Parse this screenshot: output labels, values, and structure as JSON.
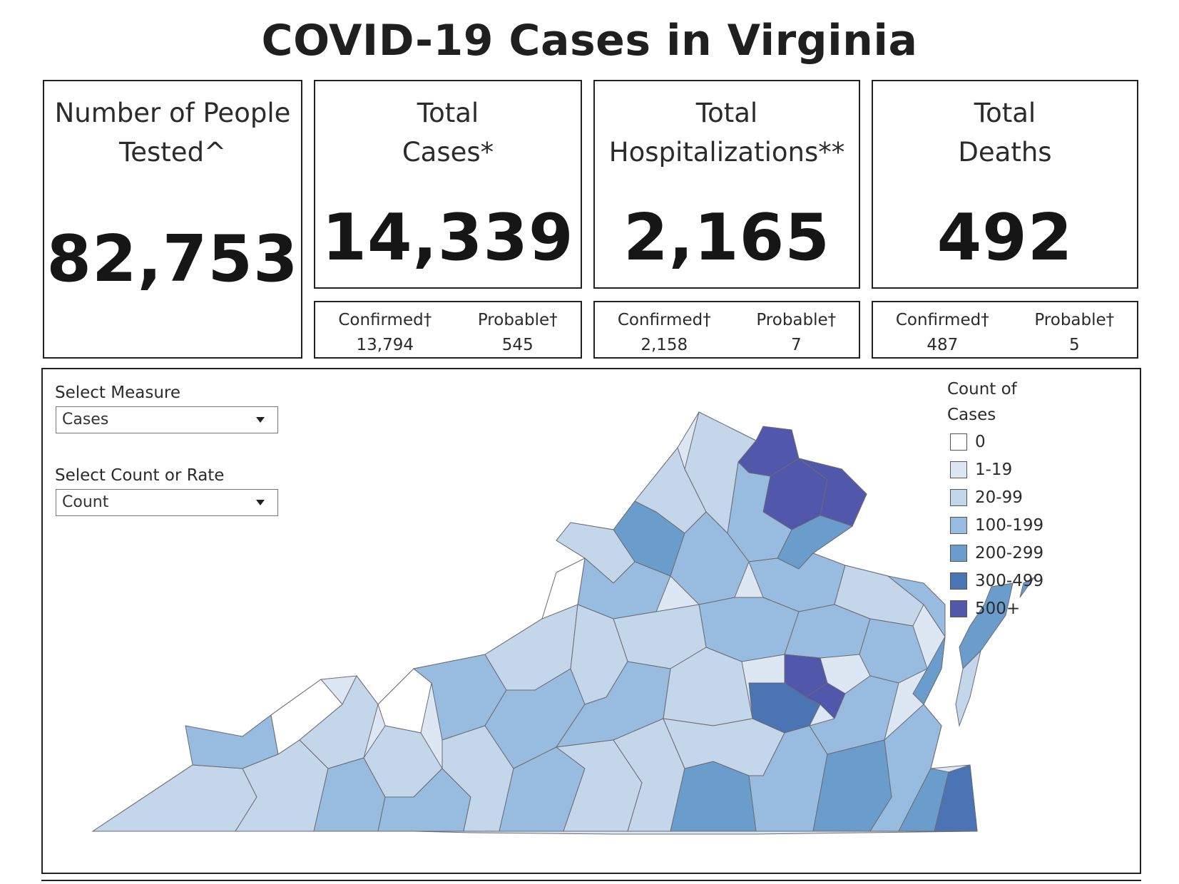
{
  "title": "COVID-19 Cases in Virginia",
  "kpis": {
    "tested": {
      "label_line1": "Number of People",
      "label_line2": "Tested^",
      "value": "82,753"
    },
    "cases": {
      "label_line1": "Total",
      "label_line2": "Cases*",
      "value": "14,339",
      "confirmed_label": "Confirmed†",
      "confirmed_value": "13,794",
      "probable_label": "Probable†",
      "probable_value": "545"
    },
    "hospitalizations": {
      "label_line1": "Total",
      "label_line2": "Hospitalizations**",
      "value": "2,165",
      "confirmed_label": "Confirmed†",
      "confirmed_value": "2,158",
      "probable_label": "Probable†",
      "probable_value": "7"
    },
    "deaths": {
      "label_line1": "Total",
      "label_line2": "Deaths",
      "value": "492",
      "confirmed_label": "Confirmed†",
      "confirmed_value": "487",
      "probable_label": "Probable†",
      "probable_value": "5"
    }
  },
  "controls": {
    "measure": {
      "label": "Select Measure",
      "value": "Cases"
    },
    "count_rate": {
      "label": "Select Count or Rate",
      "value": "Count"
    }
  },
  "legend": {
    "title_line1": "Count of",
    "title_line2": "Cases",
    "items": [
      {
        "label": "0",
        "color": "#ffffff"
      },
      {
        "label": "1-19",
        "color": "#dde6f3"
      },
      {
        "label": "20-99",
        "color": "#c3d6ea"
      },
      {
        "label": "100-199",
        "color": "#98bcdf"
      },
      {
        "label": "200-299",
        "color": "#6b9dcc"
      },
      {
        "label": "300-499",
        "color": "#4a74b3"
      },
      {
        "label": "500+",
        "color": "#5157ab"
      }
    ]
  }
}
